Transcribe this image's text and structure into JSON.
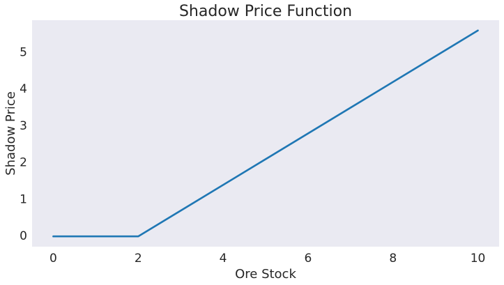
{
  "chart_data": {
    "type": "line",
    "title": "Shadow Price Function",
    "xlabel": "Ore Stock",
    "ylabel": "Shadow Price",
    "xlim": [
      -0.5,
      10.5
    ],
    "ylim": [
      -0.28,
      5.88
    ],
    "xticks": [
      0,
      2,
      4,
      6,
      8,
      10
    ],
    "yticks": [
      0,
      1,
      2,
      3,
      4,
      5
    ],
    "grid": false,
    "series": [
      {
        "color": "#1f77b4",
        "x": [
          0,
          2,
          10
        ],
        "y": [
          0,
          0,
          5.6
        ]
      }
    ]
  }
}
